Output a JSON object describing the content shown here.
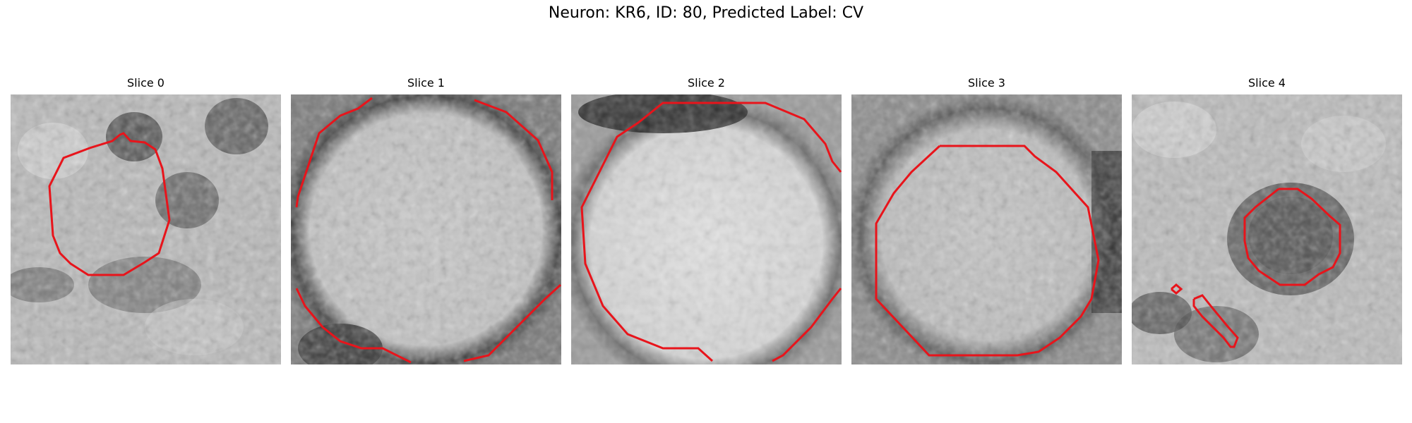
{
  "figure": {
    "title": "Neuron: KR6, ID: 80, Predicted Label: CV"
  },
  "panels": [
    {
      "title": "Slice 0"
    },
    {
      "title": "Slice 1"
    },
    {
      "title": "Slice 2"
    },
    {
      "title": "Slice 3"
    },
    {
      "title": "Slice 4"
    }
  ],
  "colors": {
    "contour": "#e8141b",
    "background": "#ffffff"
  }
}
